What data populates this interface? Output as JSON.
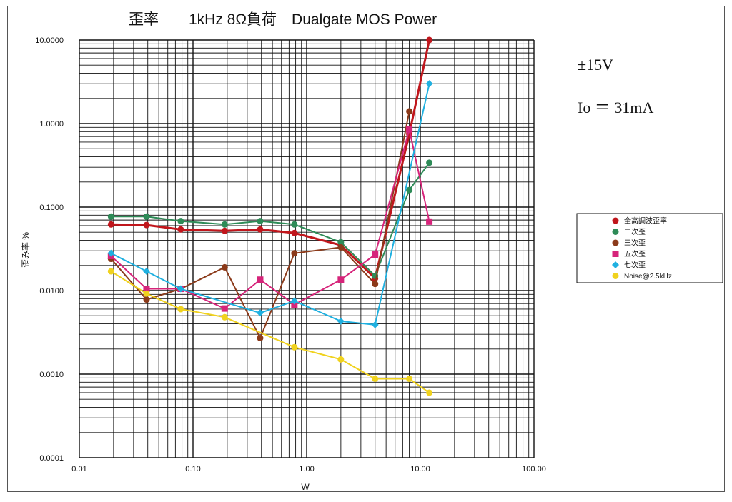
{
  "chart_data": {
    "type": "line",
    "title": "歪率　　1kHz 8Ω負荷　Dualgate MOS Power",
    "xlabel": "W",
    "ylabel": "歪み率 %",
    "x_scale": "log",
    "y_scale": "log",
    "xlim": [
      0.01,
      100
    ],
    "ylim": [
      0.0001,
      10
    ],
    "x_tick_labels": [
      "0.01",
      "0.10",
      "1.00",
      "10.00",
      "100.00"
    ],
    "y_tick_labels": [
      "10.0000",
      "1.0000",
      "0.1000",
      "0.0100",
      "0.0010",
      "0.0001"
    ],
    "grid": true,
    "legend_position": "right",
    "annotations": [
      "±15V",
      "Io ＝ 31mA"
    ],
    "series": [
      {
        "name": "全高調波歪率",
        "color": "#c0161c",
        "marker": "circle",
        "x": [
          0.019,
          0.039,
          0.078,
          0.19,
          0.39,
          0.78,
          2.0,
          4.0,
          8.0,
          12.0
        ],
        "y": [
          0.062,
          0.061,
          0.054,
          0.052,
          0.054,
          0.049,
          0.035,
          0.014,
          0.75,
          10.0
        ]
      },
      {
        "name": "二次歪",
        "color": "#2e8b57",
        "marker": "circle",
        "x": [
          0.019,
          0.039,
          0.078,
          0.19,
          0.39,
          0.78,
          2.0,
          4.0,
          8.0,
          12.0
        ],
        "y": [
          0.077,
          0.077,
          0.068,
          0.062,
          0.068,
          0.062,
          0.038,
          0.015,
          0.16,
          0.34
        ]
      },
      {
        "name": "三次歪",
        "color": "#8b3a1a",
        "marker": "circle",
        "x": [
          0.019,
          0.039,
          0.078,
          0.19,
          0.39,
          0.78,
          2.0,
          4.0,
          8.0
        ],
        "y": [
          0.024,
          0.0078,
          0.0105,
          0.019,
          0.0027,
          0.028,
          0.033,
          0.012,
          1.4
        ]
      },
      {
        "name": "五次歪",
        "color": "#d6247a",
        "marker": "square",
        "x": [
          0.019,
          0.039,
          0.078,
          0.19,
          0.39,
          0.78,
          2.0,
          4.0,
          8.0,
          12.0
        ],
        "y": [
          0.026,
          0.0105,
          0.0105,
          0.0061,
          0.0135,
          0.0068,
          0.0135,
          0.027,
          0.85,
          0.067
        ]
      },
      {
        "name": "七次歪",
        "color": "#1fb0e0",
        "marker": "diamond",
        "x": [
          0.019,
          0.039,
          0.078,
          0.39,
          0.78,
          2.0,
          4.0,
          12.0
        ],
        "y": [
          0.028,
          0.017,
          0.0105,
          0.0054,
          0.0075,
          0.0043,
          0.0039,
          3.0
        ]
      },
      {
        "name": "Noise@2.5kHz",
        "color": "#f0d21e",
        "marker": "circle",
        "x": [
          0.019,
          0.039,
          0.078,
          0.19,
          0.78,
          2.0,
          4.0,
          8.0,
          12.0
        ],
        "y": [
          0.017,
          0.0092,
          0.006,
          0.0048,
          0.0021,
          0.0015,
          0.00088,
          0.00088,
          0.0006
        ]
      }
    ]
  }
}
